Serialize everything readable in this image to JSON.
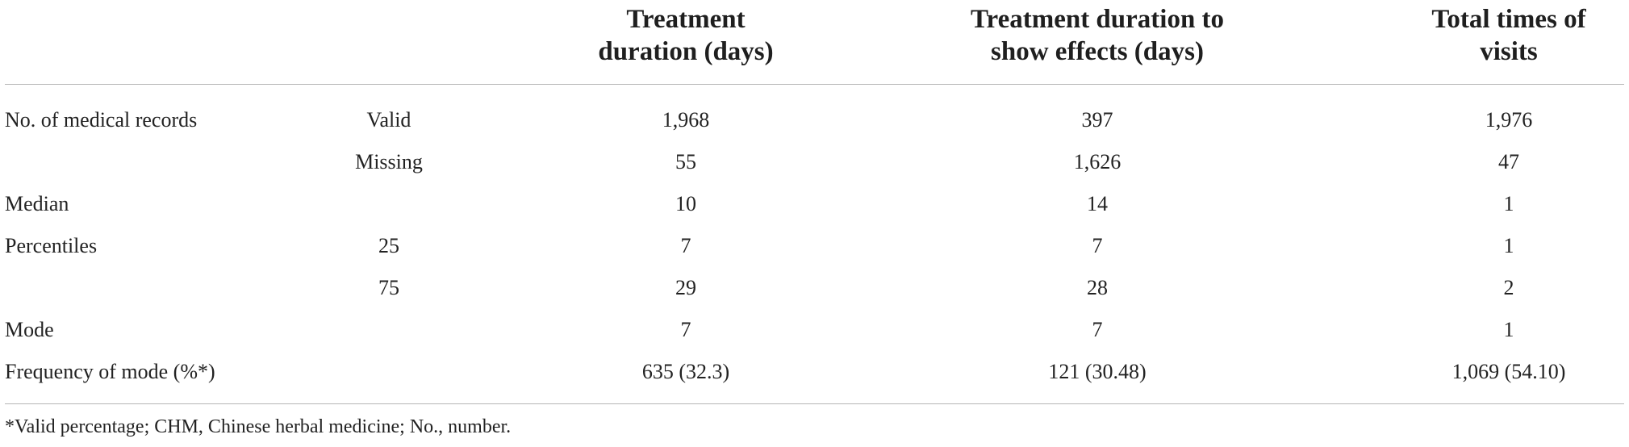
{
  "table": {
    "headers": [
      "",
      "",
      "Treatment duration (days)",
      "Treatment duration to show effects (days)",
      "Total times of visits"
    ],
    "header_lines": [
      [
        "Treatment",
        "duration (days)"
      ],
      [
        "Treatment duration to",
        "show effects (days)"
      ],
      [
        "Total times of",
        "visits"
      ]
    ],
    "rows": [
      [
        "No. of medical records",
        "Valid",
        "1,968",
        "397",
        "1,976"
      ],
      [
        "",
        "Missing",
        "55",
        "1,626",
        "47"
      ],
      [
        "Median",
        "",
        "10",
        "14",
        "1"
      ],
      [
        "Percentiles",
        "25",
        "7",
        "7",
        "1"
      ],
      [
        "",
        "75",
        "29",
        "28",
        "2"
      ],
      [
        "Mode",
        "",
        "7",
        "7",
        "1"
      ],
      [
        "Frequency of mode (%*)",
        "",
        "635 (32.3)",
        "121 (30.48)",
        "1,069 (54.10)"
      ]
    ]
  },
  "footnote": "*Valid percentage; CHM, Chinese herbal medicine; No., number."
}
